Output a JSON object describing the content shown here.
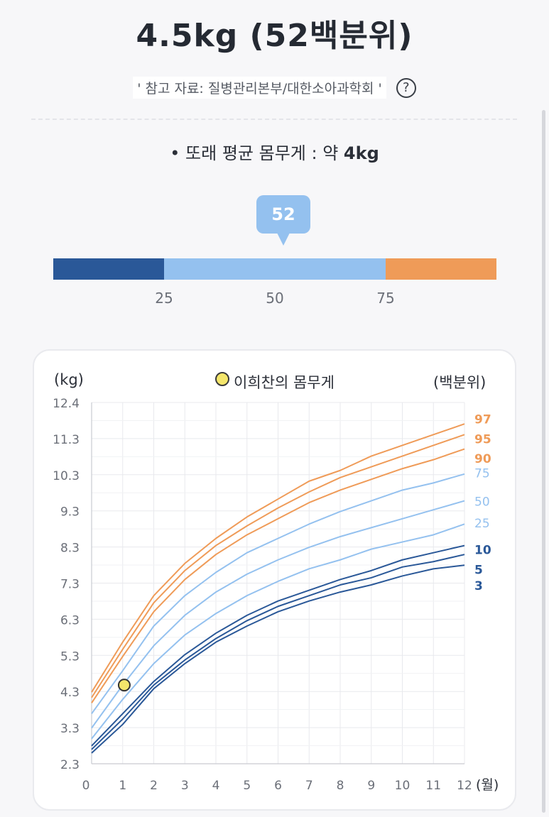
{
  "title": "4.5kg (52백분위)",
  "source": "' 참고 자료: 질병관리본부/대한소아과학회 '",
  "help_icon": "question-circle-icon",
  "average": {
    "prefix": "• 또래 평균 몸무게 : 약 ",
    "value": "4kg"
  },
  "percentile_bar": {
    "bubble": "52",
    "value": 52,
    "labels": [
      "25",
      "50",
      "75"
    ],
    "colors": [
      "#2a5898",
      "#94c1ef",
      "#ef9b58"
    ]
  },
  "chart_data": {
    "type": "line",
    "ylabel": "(kg)",
    "right_label": "(백분위)",
    "xlabel_unit": "(월)",
    "legend": "이희찬의 몸무게",
    "yticks": [
      "12.4",
      "11.3",
      "10.3",
      "9.3",
      "8.3",
      "7.3",
      "6.3",
      "5.3",
      "4.3",
      "3.3",
      "2.3"
    ],
    "ylim": [
      2.3,
      12.4
    ],
    "xticks": [
      "0",
      "1",
      "2",
      "3",
      "4",
      "5",
      "6",
      "7",
      "8",
      "9",
      "10",
      "11",
      "12"
    ],
    "xlim": [
      0,
      12
    ],
    "x": [
      0,
      1,
      2,
      3,
      4,
      5,
      6,
      7,
      8,
      9,
      10,
      11,
      12
    ],
    "grid": true,
    "series": [
      {
        "name": "97",
        "color": "#ef9b58",
        "bold": true,
        "values": [
          4.3,
          5.7,
          7.0,
          7.9,
          8.6,
          9.2,
          9.7,
          10.2,
          10.5,
          10.9,
          11.2,
          11.5,
          11.8
        ]
      },
      {
        "name": "95",
        "color": "#ef9b58",
        "bold": true,
        "values": [
          4.15,
          5.5,
          6.8,
          7.7,
          8.4,
          8.95,
          9.45,
          9.9,
          10.3,
          10.6,
          10.9,
          11.2,
          11.5
        ]
      },
      {
        "name": "90",
        "color": "#ef9b58",
        "bold": true,
        "values": [
          4.0,
          5.3,
          6.55,
          7.45,
          8.15,
          8.7,
          9.15,
          9.6,
          9.95,
          10.25,
          10.55,
          10.8,
          11.1
        ]
      },
      {
        "name": "75",
        "color": "#94c1ef",
        "bold": false,
        "values": [
          3.7,
          4.9,
          6.15,
          7.0,
          7.65,
          8.2,
          8.6,
          9.0,
          9.35,
          9.65,
          9.95,
          10.15,
          10.4
        ]
      },
      {
        "name": "50",
        "color": "#94c1ef",
        "bold": false,
        "values": [
          3.3,
          4.5,
          5.6,
          6.45,
          7.1,
          7.6,
          8.0,
          8.35,
          8.65,
          8.9,
          9.15,
          9.4,
          9.65
        ]
      },
      {
        "name": "25",
        "color": "#94c1ef",
        "bold": false,
        "values": [
          3.0,
          4.1,
          5.1,
          5.9,
          6.5,
          7.0,
          7.4,
          7.75,
          8.0,
          8.3,
          8.5,
          8.7,
          9.0
        ]
      },
      {
        "name": "10",
        "color": "#2a5898",
        "bold": true,
        "values": [
          2.8,
          3.7,
          4.6,
          5.35,
          5.95,
          6.45,
          6.85,
          7.15,
          7.45,
          7.7,
          8.0,
          8.2,
          8.4
        ]
      },
      {
        "name": "5",
        "color": "#2a5898",
        "bold": true,
        "values": [
          2.7,
          3.55,
          4.5,
          5.2,
          5.8,
          6.3,
          6.7,
          7.0,
          7.3,
          7.5,
          7.8,
          7.95,
          8.15
        ]
      },
      {
        "name": "3",
        "color": "#2a5898",
        "bold": true,
        "values": [
          2.6,
          3.4,
          4.4,
          5.1,
          5.7,
          6.15,
          6.55,
          6.85,
          7.1,
          7.3,
          7.55,
          7.75,
          7.85
        ]
      }
    ],
    "label_values": [
      11.95,
      11.4,
      10.85,
      10.45,
      9.65,
      9.05,
      8.3,
      7.75,
      7.3
    ],
    "point": {
      "x": 1.05,
      "y": 4.5,
      "color": "#f4e66b"
    }
  }
}
